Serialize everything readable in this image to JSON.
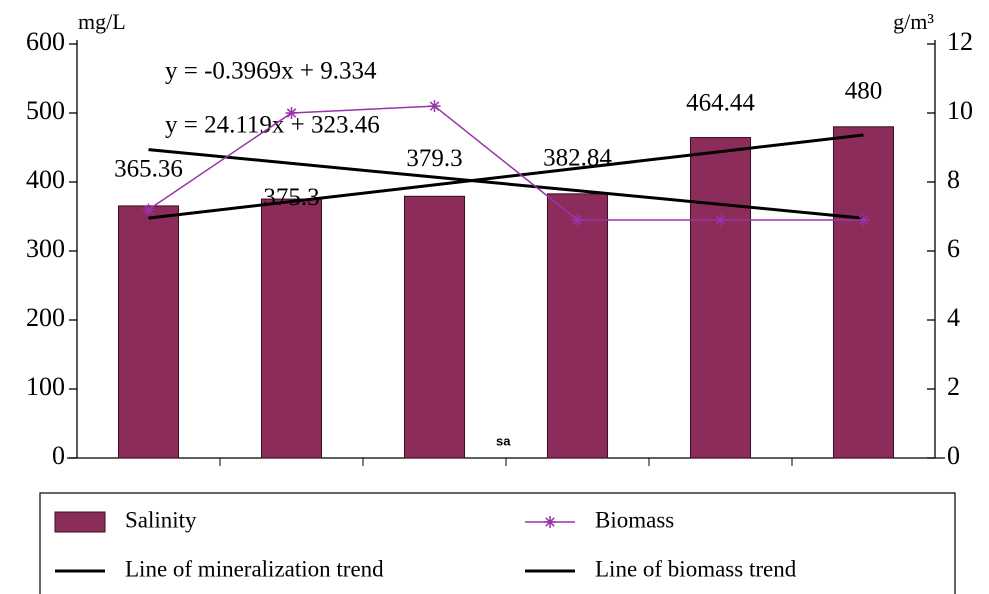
{
  "chart_data": {
    "type": "bar",
    "categories": [
      null,
      null,
      null,
      null,
      null,
      null
    ],
    "series": [
      {
        "name": "Salinity",
        "type": "bar",
        "color": "#8b2c5a",
        "axis": "y",
        "values": [
          365.36,
          375.3,
          379.3,
          382.84,
          464.44,
          480
        ]
      },
      {
        "name": "Biomass",
        "type": "line",
        "marker": "star",
        "color": "#9933aa",
        "axis": "y2",
        "values": [
          7.2,
          10.0,
          10.2,
          6.9,
          6.9,
          6.9
        ]
      },
      {
        "name": "Line of mineralization trend",
        "type": "line",
        "color": "#000000",
        "axis": "y",
        "values": [
          347.58,
          371.7,
          395.82,
          419.94,
          444.06,
          468.17
        ]
      },
      {
        "name": "Line of biomass trend",
        "type": "line",
        "color": "#000000",
        "axis": "y2",
        "values": [
          8.94,
          8.54,
          8.14,
          7.75,
          7.35,
          6.95
        ]
      }
    ],
    "ylabel": "mg/L",
    "y2label": "g/m³",
    "ylim": [
      0,
      600
    ],
    "yticks": [
      0,
      100,
      200,
      300,
      400,
      500,
      600
    ],
    "y2lim": [
      0,
      12
    ],
    "y2ticks": [
      0,
      2,
      4,
      6,
      8,
      10,
      12
    ],
    "annotations": [
      {
        "text": "y = -0.3969x + 9.334"
      },
      {
        "text": "y = 24.119x + 323.46"
      },
      {
        "text": "sa"
      }
    ],
    "grid": false,
    "legend": "bottom"
  }
}
